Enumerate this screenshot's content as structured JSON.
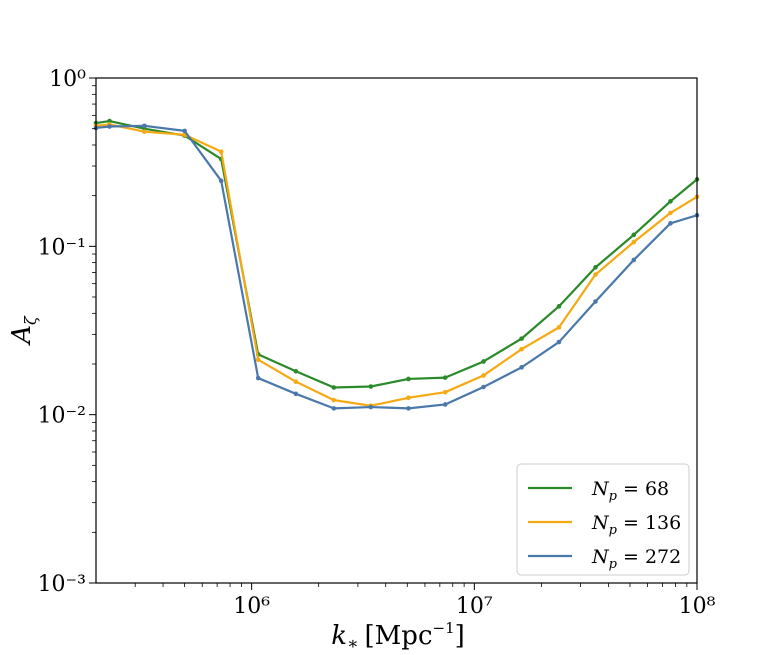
{
  "chart_data": {
    "type": "line",
    "title": "",
    "xlabel": "k∗ [Mpc⁻¹]",
    "ylabel": "Aζ",
    "xscale": "log",
    "yscale": "log",
    "xlim": [
      200000,
      100000000
    ],
    "ylim": [
      0.001,
      1
    ],
    "grid": false,
    "legend_position": "lower-right",
    "x_ticks": [
      {
        "value": 1000000,
        "label": "10⁶"
      },
      {
        "value": 10000000,
        "label": "10⁷"
      },
      {
        "value": 100000000,
        "label": "10⁸"
      }
    ],
    "y_ticks": [
      {
        "value": 0.001,
        "label": "10⁻³"
      },
      {
        "value": 0.01,
        "label": "10⁻²"
      },
      {
        "value": 0.1,
        "label": "10⁻¹"
      },
      {
        "value": 1,
        "label": "10⁰"
      }
    ],
    "x": [
      200000,
      230000,
      330000,
      500000,
      730000,
      1070000,
      1580000,
      2340000,
      3430000,
      5060000,
      7400000,
      11000000,
      16300000,
      24000000,
      35000000,
      52000000,
      76000000,
      100000000
    ],
    "series": [
      {
        "name": "Np = 68",
        "color": "#2a8a2a",
        "values": [
          0.54,
          0.555,
          0.5,
          0.455,
          0.33,
          0.0228,
          0.0181,
          0.0145,
          0.0147,
          0.0163,
          0.0166,
          0.0207,
          0.0283,
          0.044,
          0.075,
          0.117,
          0.185,
          0.25
        ]
      },
      {
        "name": "Np = 136",
        "color": "#f5a912",
        "values": [
          0.52,
          0.53,
          0.48,
          0.46,
          0.365,
          0.0212,
          0.0157,
          0.0122,
          0.0113,
          0.0126,
          0.0136,
          0.0171,
          0.0245,
          0.033,
          0.068,
          0.106,
          0.158,
          0.197
        ]
      },
      {
        "name": "Np = 272",
        "color": "#4a78ab",
        "values": [
          0.505,
          0.515,
          0.52,
          0.485,
          0.245,
          0.0165,
          0.0133,
          0.0109,
          0.0111,
          0.0109,
          0.0115,
          0.0146,
          0.0191,
          0.027,
          0.047,
          0.083,
          0.137,
          0.153
        ]
      }
    ],
    "legend": [
      {
        "prefix": "N",
        "sub": "p",
        "rest": " = 68"
      },
      {
        "prefix": "N",
        "sub": "p",
        "rest": " = 136"
      },
      {
        "prefix": "N",
        "sub": "p",
        "rest": " = 272"
      }
    ]
  }
}
